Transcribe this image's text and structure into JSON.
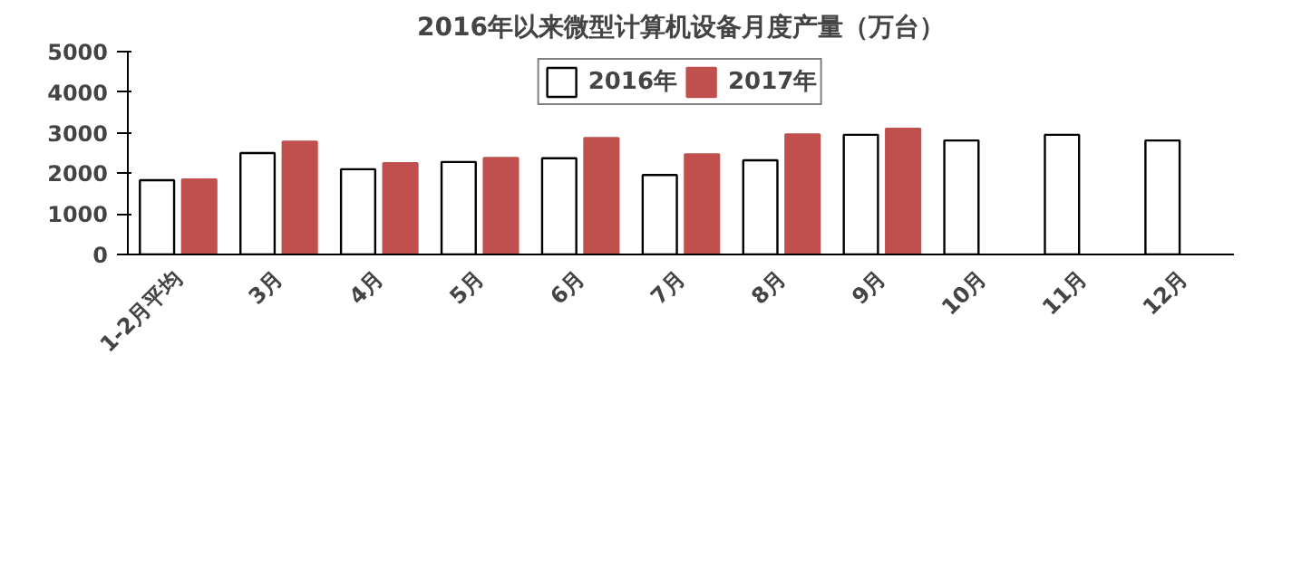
{
  "chart_data": {
    "type": "bar",
    "title": "2016年以来微型计算机设备月度产量（万台）",
    "categories": [
      "1-2月平均",
      "3月",
      "4月",
      "5月",
      "6月",
      "7月",
      "8月",
      "9月",
      "10月",
      "11月",
      "12月"
    ],
    "series": [
      {
        "name": "2016年",
        "color": "#ffffff",
        "values": [
          1830,
          2500,
          2100,
          2280,
          2370,
          1960,
          2320,
          2950,
          2810,
          2950,
          2810
        ]
      },
      {
        "name": "2017年",
        "color": "#c0504d",
        "values": [
          1850,
          2780,
          2250,
          2380,
          2870,
          2470,
          2960,
          3100,
          null,
          null,
          null
        ]
      }
    ],
    "ylim": [
      0,
      5000
    ],
    "yticks": [
      0,
      1000,
      2000,
      3000,
      4000,
      5000
    ],
    "grid": false,
    "legend": "top"
  }
}
